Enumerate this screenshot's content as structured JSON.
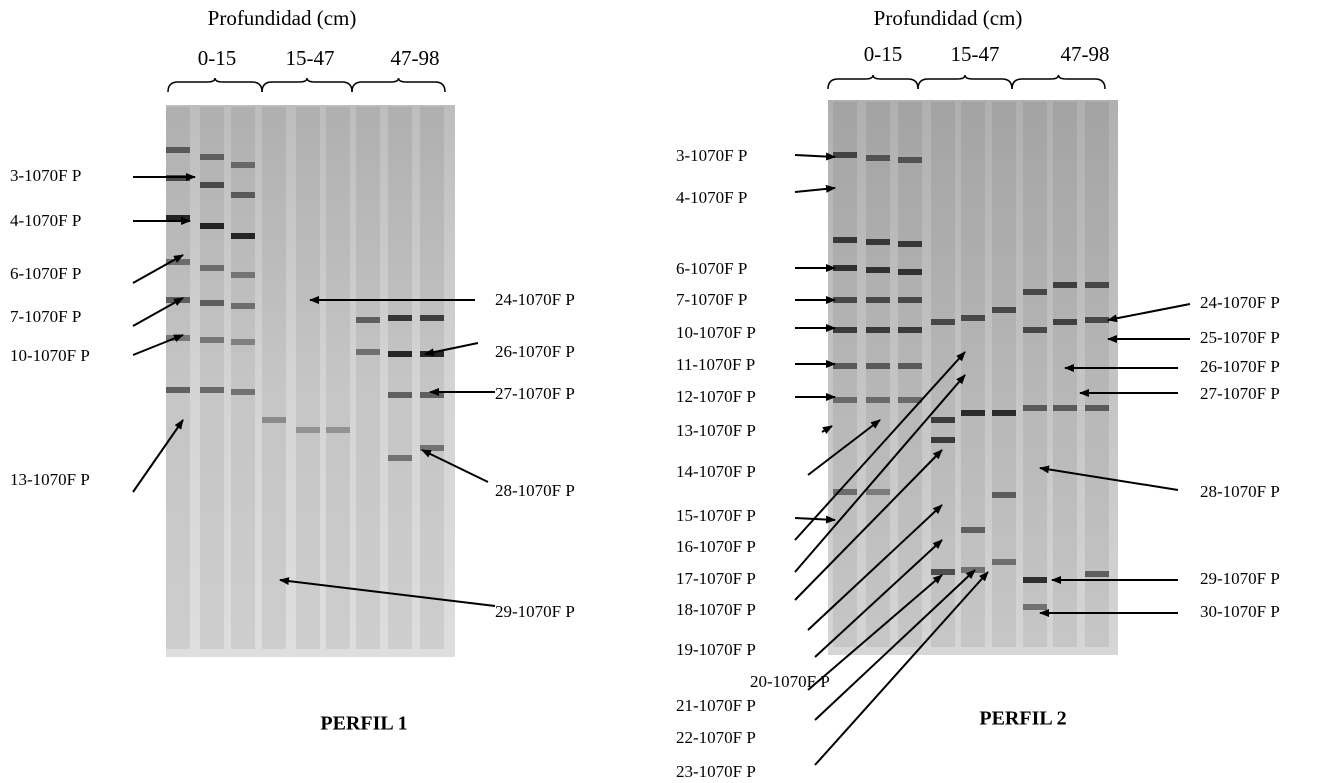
{
  "panels": [
    {
      "header": "Profundidad (cm)",
      "depths": [
        "0-15",
        "15-47",
        "47-98"
      ],
      "left_labels": [
        "3-1070F P",
        "4-1070F P",
        "6-1070F P",
        "7-1070F P",
        "10-1070F P",
        "13-1070F P"
      ],
      "right_labels": [
        "24-1070F P",
        "26-1070F P",
        "27-1070F P",
        "28-1070F P",
        "29-1070F P"
      ],
      "title": "PERFIL 1"
    },
    {
      "header": "Profundidad (cm)",
      "depths": [
        "0-15",
        "15-47",
        "47-98"
      ],
      "left_labels": [
        "3-1070F P",
        "4-1070F P",
        "6-1070F P",
        "7-1070F P",
        "10-1070F P",
        "11-1070F P",
        "12-1070F P",
        "13-1070F P",
        "14-1070F P",
        "15-1070F P",
        "16-1070F P",
        "17-1070F P",
        "18-1070F P",
        "19-1070F P",
        "20-1070F P",
        "21-1070F P",
        "22-1070F P",
        "23-1070F P"
      ],
      "right_labels": [
        "24-1070F P",
        "25-1070F P",
        "26-1070F P",
        "27-1070F P",
        "28-1070F P",
        "29-1070F P",
        "30-1070F P"
      ],
      "title": "PERFIL 2"
    }
  ]
}
